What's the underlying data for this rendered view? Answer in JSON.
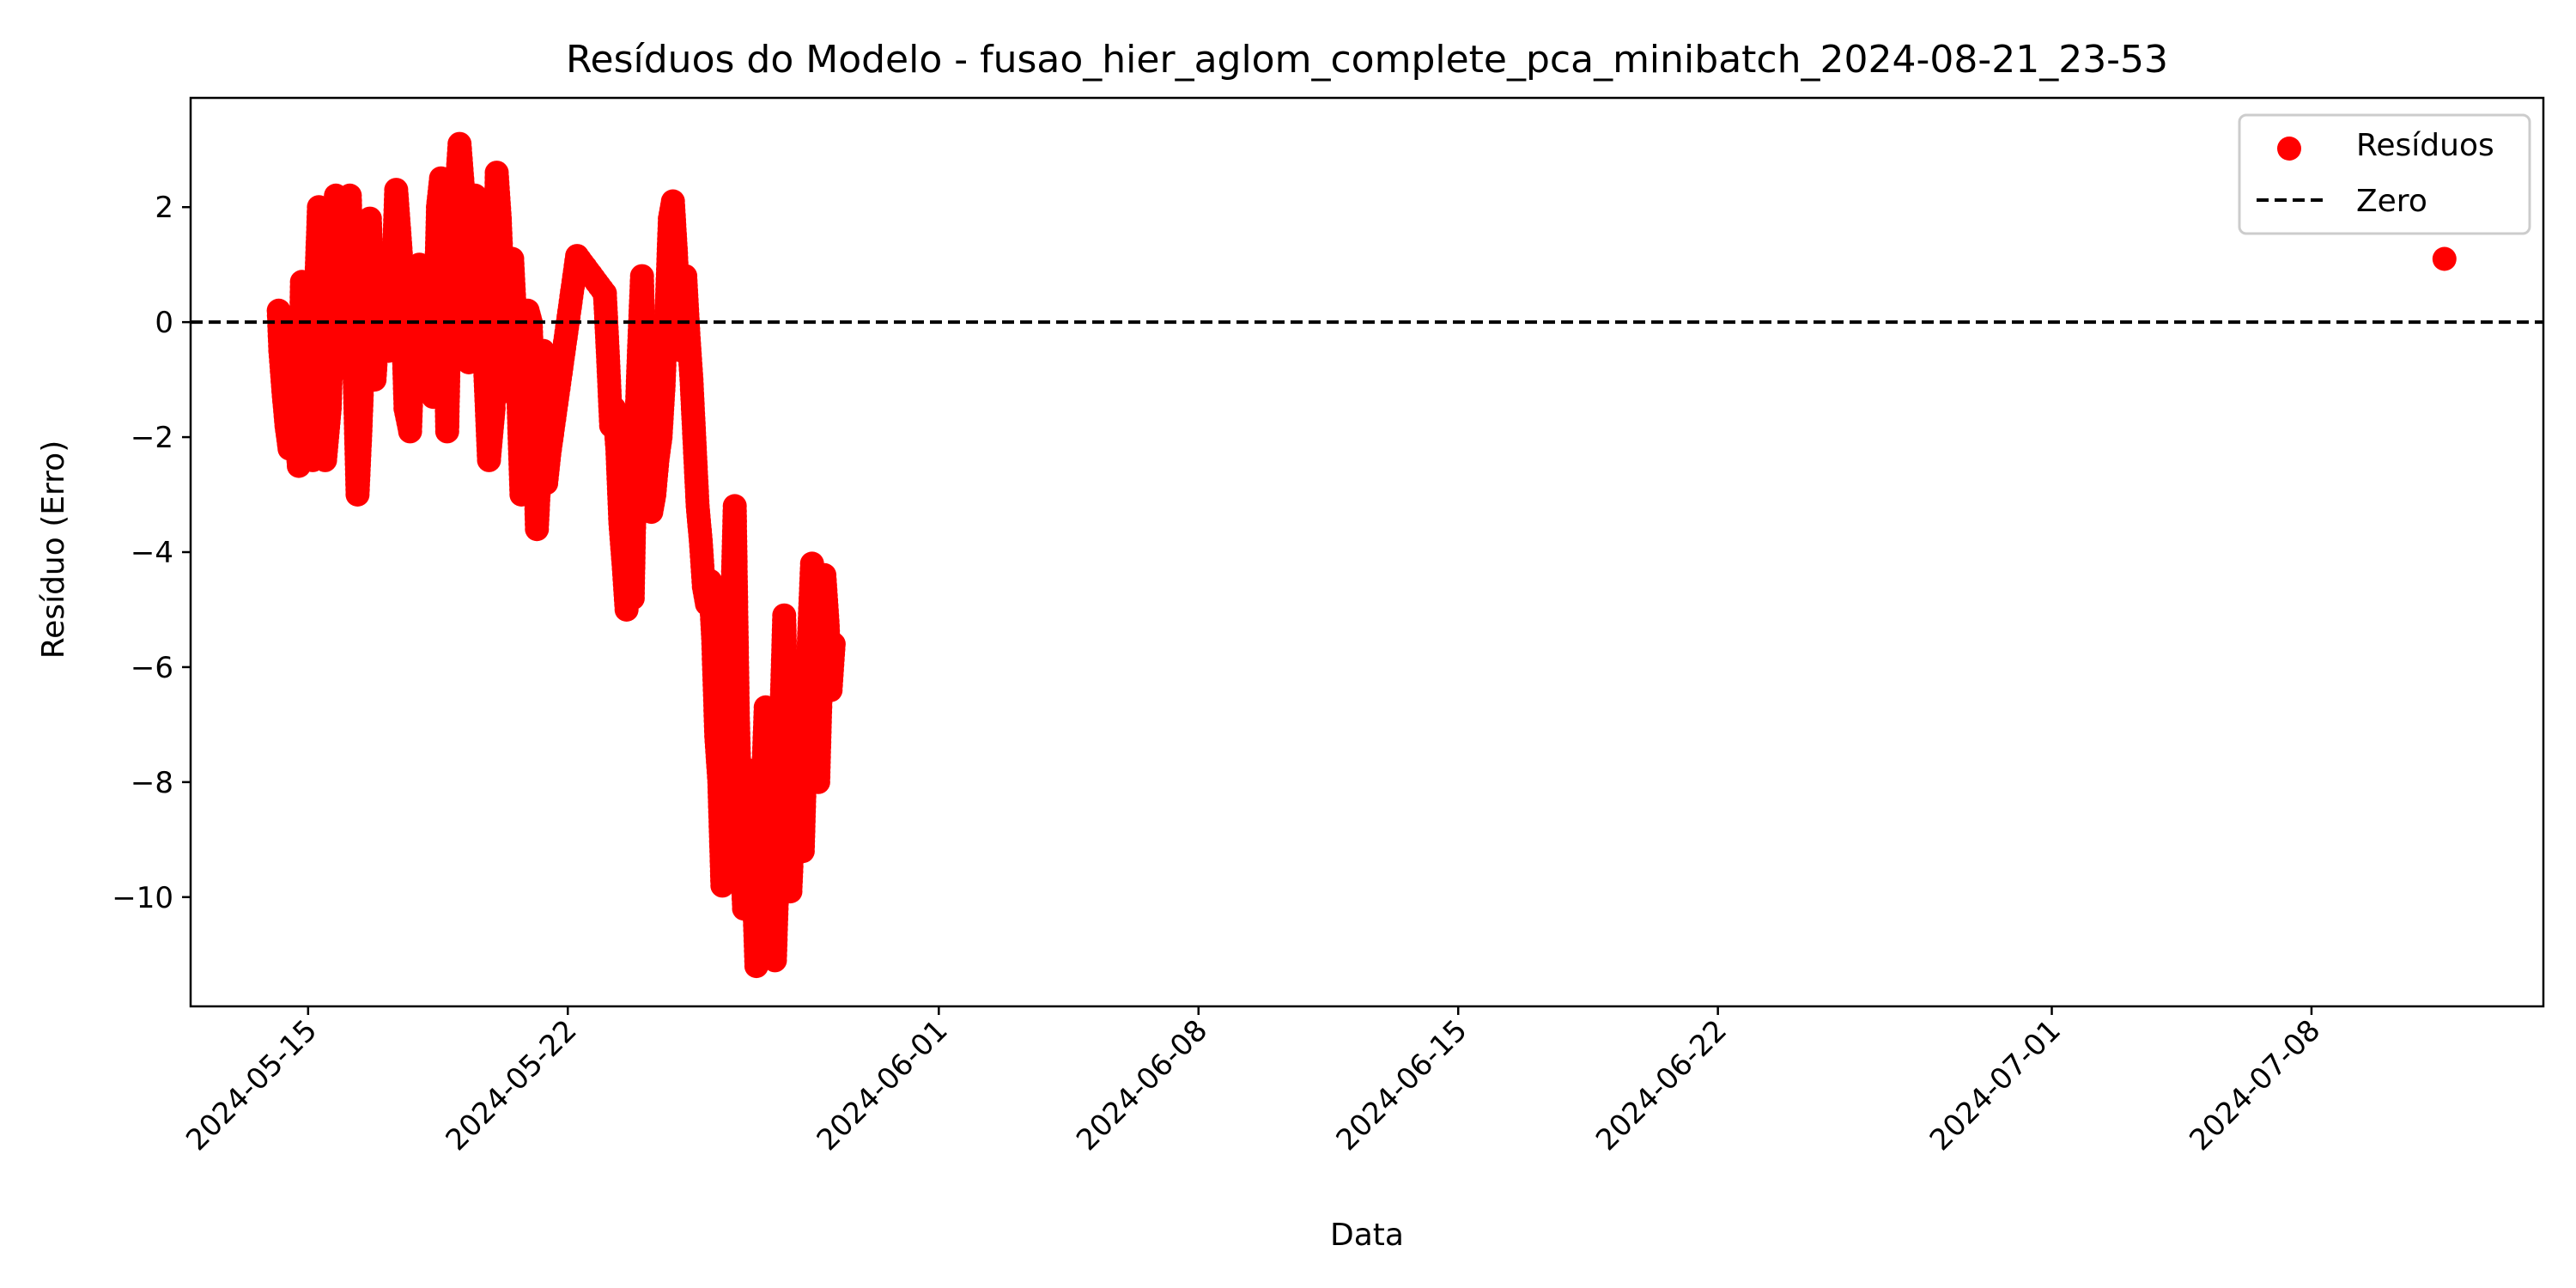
{
  "chart_data": {
    "type": "scatter",
    "title": "Resíduos do Modelo - fusao_hier_aglom_complete_pca_minibatch_2024-08-21_23-53",
    "xlabel": "Data",
    "ylabel": "Resíduo (Erro)",
    "x_type": "date",
    "xlim": [
      "2024-05-11T20:00",
      "2024-07-14T06:00"
    ],
    "ylim": [
      -11.9,
      3.9
    ],
    "x_ticks": [
      "2024-05-15",
      "2024-05-22",
      "2024-06-01",
      "2024-06-08",
      "2024-06-15",
      "2024-06-22",
      "2024-07-01",
      "2024-07-08"
    ],
    "y_ticks": [
      2,
      0,
      -2,
      -4,
      -6,
      -8,
      -10
    ],
    "y_tick_labels": [
      "2",
      "0",
      "−2",
      "−4",
      "−6",
      "−8",
      "−10"
    ],
    "grid": false,
    "legend_position": "top-right",
    "reference_line": {
      "name": "Zero",
      "y": 0,
      "style": "dashed",
      "color": "#000000"
    },
    "series": [
      {
        "name": "Resíduos",
        "color": "#ff0000",
        "points": [
          [
            "2024-05-14T05:00",
            0.2
          ],
          [
            "2024-05-14T06:00",
            -0.5
          ],
          [
            "2024-05-14T08:00",
            -1.2
          ],
          [
            "2024-05-14T10:00",
            -1.8
          ],
          [
            "2024-05-14T12:00",
            -2.2
          ],
          [
            "2024-05-14T15:00",
            -1.5
          ],
          [
            "2024-05-14T18:00",
            -2.5
          ],
          [
            "2024-05-14T20:00",
            0.7
          ],
          [
            "2024-05-14T22:00",
            -0.3
          ],
          [
            "2024-05-15T00:00",
            -1.0
          ],
          [
            "2024-05-15T03:00",
            -2.4
          ],
          [
            "2024-05-15T05:00",
            0.5
          ],
          [
            "2024-05-15T07:00",
            2.0
          ],
          [
            "2024-05-15T09:00",
            1.0
          ],
          [
            "2024-05-15T11:00",
            -2.4
          ],
          [
            "2024-05-15T14:00",
            -1.5
          ],
          [
            "2024-05-15T16:00",
            0.3
          ],
          [
            "2024-05-15T18:00",
            2.2
          ],
          [
            "2024-05-15T21:00",
            -0.8
          ],
          [
            "2024-05-16T00:00",
            1.2
          ],
          [
            "2024-05-16T03:00",
            2.2
          ],
          [
            "2024-05-16T05:00",
            0.2
          ],
          [
            "2024-05-16T08:00",
            -3.0
          ],
          [
            "2024-05-16T10:00",
            -1.8
          ],
          [
            "2024-05-16T13:00",
            0.5
          ],
          [
            "2024-05-16T16:00",
            1.8
          ],
          [
            "2024-05-16T19:00",
            -1.0
          ],
          [
            "2024-05-16T22:00",
            0.3
          ],
          [
            "2024-05-17T01:00",
            1.2
          ],
          [
            "2024-05-17T04:00",
            -0.5
          ],
          [
            "2024-05-17T07:00",
            0.8
          ],
          [
            "2024-05-17T09:00",
            2.3
          ],
          [
            "2024-05-17T12:00",
            1.2
          ],
          [
            "2024-05-17T15:00",
            -1.5
          ],
          [
            "2024-05-17T18:00",
            -1.9
          ],
          [
            "2024-05-17T21:00",
            0.5
          ],
          [
            "2024-05-18T00:00",
            1.0
          ],
          [
            "2024-05-18T03:00",
            -0.8
          ],
          [
            "2024-05-18T06:00",
            0.5
          ],
          [
            "2024-05-18T09:00",
            -1.3
          ],
          [
            "2024-05-18T12:00",
            2.0
          ],
          [
            "2024-05-18T14:00",
            2.5
          ],
          [
            "2024-05-18T16:00",
            1.0
          ],
          [
            "2024-05-18T18:00",
            -1.9
          ],
          [
            "2024-05-18T20:00",
            0.8
          ],
          [
            "2024-05-18T22:00",
            1.5
          ],
          [
            "2024-05-19T00:00",
            2.3
          ],
          [
            "2024-05-19T02:00",
            3.1
          ],
          [
            "2024-05-19T04:00",
            2.4
          ],
          [
            "2024-05-19T06:00",
            1.2
          ],
          [
            "2024-05-19T08:00",
            -0.7
          ],
          [
            "2024-05-19T10:00",
            0.8
          ],
          [
            "2024-05-19T12:00",
            2.2
          ],
          [
            "2024-05-19T15:00",
            1.5
          ],
          [
            "2024-05-19T18:00",
            -0.5
          ],
          [
            "2024-05-19T21:00",
            -2.4
          ],
          [
            "2024-05-20T00:00",
            -1.5
          ],
          [
            "2024-05-20T02:00",
            2.6
          ],
          [
            "2024-05-20T04:00",
            1.8
          ],
          [
            "2024-05-20T06:00",
            0.5
          ],
          [
            "2024-05-20T08:00",
            -1.2
          ],
          [
            "2024-05-20T10:00",
            0.3
          ],
          [
            "2024-05-20T12:00",
            1.1
          ],
          [
            "2024-05-20T15:00",
            -0.5
          ],
          [
            "2024-05-20T18:00",
            -3.0
          ],
          [
            "2024-05-20T20:00",
            -2.8
          ],
          [
            "2024-05-20T22:00",
            0.2
          ],
          [
            "2024-05-21T00:00",
            0.0
          ],
          [
            "2024-05-21T02:00",
            -1.5
          ],
          [
            "2024-05-21T04:00",
            -3.6
          ],
          [
            "2024-05-21T06:00",
            -2.5
          ],
          [
            "2024-05-21T08:00",
            -0.5
          ],
          [
            "2024-05-21T10:00",
            -2.8
          ],
          [
            "2024-05-21T12:00",
            -2.3
          ],
          [
            "2024-05-22T06:00",
            1.15
          ],
          [
            "2024-05-23T00:00",
            0.5
          ],
          [
            "2024-05-23T02:00",
            -0.6
          ],
          [
            "2024-05-23T04:00",
            -1.8
          ],
          [
            "2024-05-23T06:00",
            -1.5
          ],
          [
            "2024-05-23T08:00",
            -2.2
          ],
          [
            "2024-05-23T10:00",
            -3.5
          ],
          [
            "2024-05-23T12:00",
            -4.2
          ],
          [
            "2024-05-23T14:00",
            -5.0
          ],
          [
            "2024-05-23T16:00",
            -3.9
          ],
          [
            "2024-05-23T18:00",
            -4.8
          ],
          [
            "2024-05-23T20:00",
            -2.0
          ],
          [
            "2024-05-23T22:00",
            -0.5
          ],
          [
            "2024-05-24T00:00",
            0.8
          ],
          [
            "2024-05-24T02:00",
            -1.5
          ],
          [
            "2024-05-24T04:00",
            -2.8
          ],
          [
            "2024-05-24T06:00",
            -3.3
          ],
          [
            "2024-05-24T08:00",
            -3.0
          ],
          [
            "2024-05-24T10:00",
            -2.4
          ],
          [
            "2024-05-24T12:00",
            -2.0
          ],
          [
            "2024-05-24T14:00",
            -1.1
          ],
          [
            "2024-05-24T16:00",
            0.3
          ],
          [
            "2024-05-24T18:00",
            1.8
          ],
          [
            "2024-05-24T20:00",
            2.1
          ],
          [
            "2024-05-24T22:00",
            1.2
          ],
          [
            "2024-05-25T00:00",
            0.0
          ],
          [
            "2024-05-25T02:00",
            -0.5
          ],
          [
            "2024-05-25T04:00",
            0.8
          ],
          [
            "2024-05-25T06:00",
            -0.2
          ],
          [
            "2024-05-25T08:00",
            -1.0
          ],
          [
            "2024-05-25T10:00",
            -2.1
          ],
          [
            "2024-05-25T12:00",
            -3.2
          ],
          [
            "2024-05-25T14:00",
            -3.8
          ],
          [
            "2024-05-25T16:00",
            -4.6
          ],
          [
            "2024-05-25T18:00",
            -4.9
          ],
          [
            "2024-05-25T20:00",
            -4.5
          ],
          [
            "2024-05-25T22:00",
            -5.5
          ],
          [
            "2024-05-26T00:00",
            -7.2
          ],
          [
            "2024-05-26T02:00",
            -8.0
          ],
          [
            "2024-05-26T04:00",
            -9.8
          ],
          [
            "2024-05-26T06:00",
            -8.5
          ],
          [
            "2024-05-26T08:00",
            -6.6
          ],
          [
            "2024-05-26T10:00",
            -5.3
          ],
          [
            "2024-05-26T12:00",
            -3.2
          ],
          [
            "2024-05-26T14:00",
            -6.8
          ],
          [
            "2024-05-26T16:00",
            -8.9
          ],
          [
            "2024-05-26T18:00",
            -10.2
          ],
          [
            "2024-05-26T20:00",
            -9.1
          ],
          [
            "2024-05-26T22:00",
            -7.8
          ],
          [
            "2024-05-27T00:00",
            -9.6
          ],
          [
            "2024-05-27T02:00",
            -11.2
          ],
          [
            "2024-05-27T04:00",
            -10.5
          ],
          [
            "2024-05-27T06:00",
            -8.2
          ],
          [
            "2024-05-27T08:00",
            -6.7
          ],
          [
            "2024-05-27T10:00",
            -8.8
          ],
          [
            "2024-05-27T12:00",
            -10.8
          ],
          [
            "2024-05-27T14:00",
            -11.1
          ],
          [
            "2024-05-27T16:00",
            -9.4
          ],
          [
            "2024-05-27T18:00",
            -7.0
          ],
          [
            "2024-05-27T20:00",
            -5.1
          ],
          [
            "2024-05-27T22:00",
            -7.5
          ],
          [
            "2024-05-28T00:00",
            -9.9
          ],
          [
            "2024-05-28T02:00",
            -8.6
          ],
          [
            "2024-05-28T04:00",
            -6.1
          ],
          [
            "2024-05-28T06:00",
            -7.9
          ],
          [
            "2024-05-28T08:00",
            -9.2
          ],
          [
            "2024-05-28T10:00",
            -7.3
          ],
          [
            "2024-05-28T12:00",
            -5.5
          ],
          [
            "2024-05-28T14:00",
            -4.2
          ],
          [
            "2024-05-28T16:00",
            -6.3
          ],
          [
            "2024-05-28T18:00",
            -8.0
          ],
          [
            "2024-05-28T20:00",
            -6.0
          ],
          [
            "2024-05-28T22:00",
            -4.4
          ],
          [
            "2024-05-29T00:00",
            -5.2
          ],
          [
            "2024-05-29T02:00",
            -6.4
          ],
          [
            "2024-05-29T04:00",
            -5.6
          ],
          [
            "2024-07-11T14:00",
            1.1
          ]
        ]
      }
    ]
  },
  "legend": {
    "entries": [
      {
        "label": "Resíduos"
      },
      {
        "label": "Zero"
      }
    ]
  }
}
